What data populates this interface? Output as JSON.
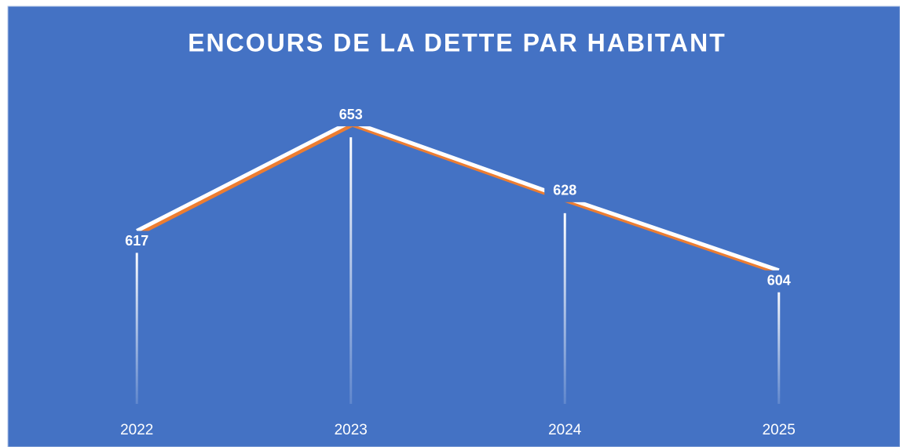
{
  "chart_data": {
    "type": "line",
    "title": "ENCOURS DE LA DETTE PAR HABITANT",
    "categories": [
      "2022",
      "2023",
      "2024",
      "2025"
    ],
    "values": [
      617,
      653,
      628,
      604
    ],
    "color": "#ffffff",
    "shadow_color": "#ed7d31",
    "background": "#4472c4",
    "ylim": [
      560,
      660
    ],
    "drop_lines": true,
    "grid": false
  }
}
